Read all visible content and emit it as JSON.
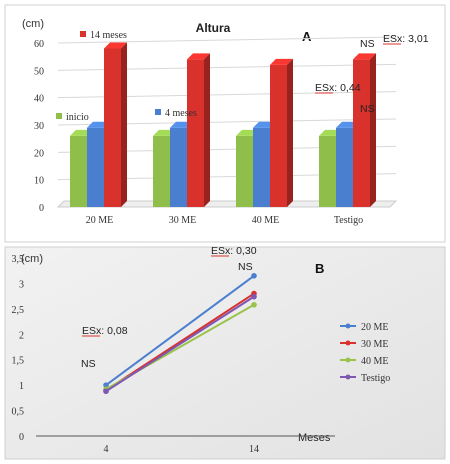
{
  "chart_data": [
    {
      "type": "bar",
      "panel_letter": "A",
      "title": "Altura",
      "unit_label": "(cm)",
      "categories": [
        "20 ME",
        "30 ME",
        "40 ME",
        "Testigo"
      ],
      "ylim": [
        0,
        60
      ],
      "yticks": [
        0,
        10,
        20,
        30,
        40,
        50,
        60
      ],
      "grid": true,
      "series": [
        {
          "name": "inicio",
          "color": "#8fbf4a",
          "values": [
            26,
            26,
            26,
            26
          ]
        },
        {
          "name": "4 meses",
          "color": "#4a7fcf",
          "values": [
            29,
            29,
            29,
            29
          ]
        },
        {
          "name": "14 meses",
          "color": "#d9312b",
          "values": [
            58,
            54,
            52,
            54
          ]
        }
      ],
      "annotations": [
        {
          "text": "ESx: 3,01"
        },
        {
          "text": "NS"
        },
        {
          "text": "ESx: 0,44"
        },
        {
          "text": "NS"
        }
      ]
    },
    {
      "type": "line",
      "panel_letter": "B",
      "unit_label": "(cm)",
      "xlabel": "Meses",
      "x": [
        "4",
        "14"
      ],
      "ylim": [
        0,
        3.5
      ],
      "yticks": [
        "0",
        "0,5",
        "1",
        "1,5",
        "2",
        "2,5",
        "3",
        "3,5"
      ],
      "legend": "right",
      "series": [
        {
          "name": "20 ME",
          "color": "#4a7fcf",
          "values": [
            1.0,
            3.15
          ]
        },
        {
          "name": "30 ME",
          "color": "#d9312b",
          "values": [
            0.9,
            2.8
          ]
        },
        {
          "name": "40 ME",
          "color": "#9bc24a",
          "values": [
            0.92,
            2.58
          ]
        },
        {
          "name": "Testigo",
          "color": "#7e57b2",
          "values": [
            0.88,
            2.74
          ]
        }
      ],
      "annotations": [
        {
          "text": "ESx: 0,30"
        },
        {
          "text": "NS"
        },
        {
          "text": "ESx: 0,08"
        },
        {
          "text": "NS"
        }
      ]
    }
  ]
}
